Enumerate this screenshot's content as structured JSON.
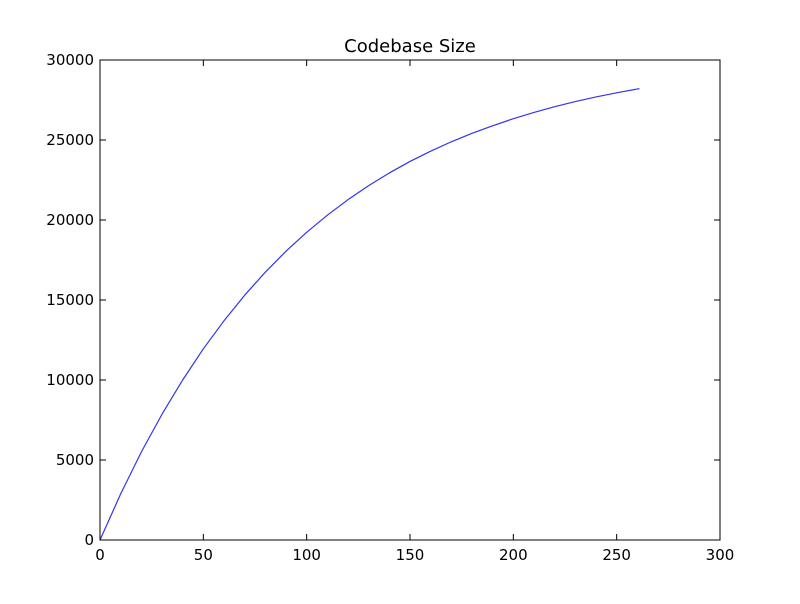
{
  "chart_data": {
    "type": "line",
    "title": "Codebase Size",
    "xlabel": "",
    "ylabel": "",
    "xlim": [
      0,
      300
    ],
    "ylim": [
      0,
      30000
    ],
    "x_ticks": [
      0,
      50,
      100,
      150,
      200,
      250,
      300
    ],
    "y_ticks": [
      0,
      5000,
      10000,
      15000,
      20000,
      25000,
      30000
    ],
    "x_tick_labels": [
      "0",
      "50",
      "100",
      "150",
      "200",
      "250",
      "300"
    ],
    "y_tick_labels": [
      "0",
      "5000",
      "10000",
      "15000",
      "20000",
      "25000",
      "30000"
    ],
    "grid": false,
    "legend": "none",
    "series": [
      {
        "color": "#3333ee",
        "x": [
          0,
          10,
          20,
          30,
          40,
          50,
          60,
          70,
          80,
          90,
          100,
          110,
          120,
          130,
          140,
          150,
          160,
          170,
          180,
          190,
          200,
          210,
          220,
          230,
          240,
          250,
          261
        ],
        "y": [
          0,
          2880,
          5500,
          7860,
          10000,
          11950,
          13700,
          15300,
          16740,
          18050,
          19230,
          20300,
          21270,
          22150,
          22940,
          23660,
          24300,
          24890,
          25420,
          25890,
          26330,
          26720,
          27080,
          27400,
          27690,
          27950,
          28210
        ]
      }
    ]
  }
}
